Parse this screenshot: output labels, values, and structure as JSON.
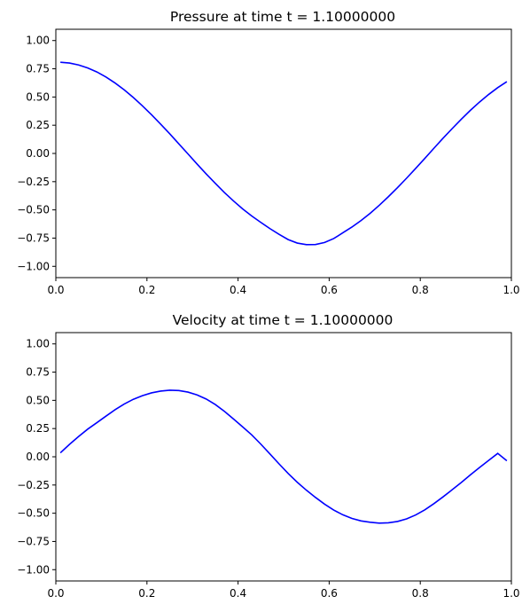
{
  "chart_data": [
    {
      "type": "line",
      "title": "Pressure at time t =      1.10000000",
      "xlabel": "",
      "ylabel": "",
      "xlim": [
        0,
        1
      ],
      "ylim": [
        -1.1,
        1.1
      ],
      "xticks": [
        0.0,
        0.2,
        0.4,
        0.6,
        0.8,
        1.0
      ],
      "xtick_labels": [
        "0.0",
        "0.2",
        "0.4",
        "0.6",
        "0.8",
        "1.0"
      ],
      "yticks": [
        -1.0,
        -0.75,
        -0.5,
        -0.25,
        0.0,
        0.25,
        0.5,
        0.75,
        1.0
      ],
      "ytick_labels": [
        "−1.00",
        "−0.75",
        "−0.50",
        "−0.25",
        "0.00",
        "0.25",
        "0.50",
        "0.75",
        "1.00"
      ],
      "grid": false,
      "series": [
        {
          "color": "#0000ff",
          "x": [
            0.01,
            0.03,
            0.05,
            0.07,
            0.09,
            0.11,
            0.13,
            0.15,
            0.17,
            0.19,
            0.21,
            0.23,
            0.25,
            0.27,
            0.29,
            0.31,
            0.33,
            0.35,
            0.37,
            0.39,
            0.41,
            0.43,
            0.45,
            0.47,
            0.49,
            0.51,
            0.53,
            0.55,
            0.57,
            0.59,
            0.61,
            0.63,
            0.65,
            0.67,
            0.69,
            0.71,
            0.73,
            0.75,
            0.77,
            0.79,
            0.81,
            0.83,
            0.85,
            0.87,
            0.89,
            0.91,
            0.93,
            0.95,
            0.97,
            0.99
          ],
          "values": [
            0.808,
            0.801,
            0.784,
            0.757,
            0.722,
            0.677,
            0.624,
            0.564,
            0.496,
            0.422,
            0.343,
            0.26,
            0.174,
            0.085,
            -0.004,
            -0.094,
            -0.181,
            -0.265,
            -0.346,
            -0.421,
            -0.491,
            -0.554,
            -0.611,
            -0.666,
            -0.716,
            -0.763,
            -0.794,
            -0.808,
            -0.807,
            -0.789,
            -0.754,
            -0.703,
            -0.652,
            -0.594,
            -0.53,
            -0.459,
            -0.383,
            -0.303,
            -0.219,
            -0.132,
            -0.044,
            0.046,
            0.135,
            0.22,
            0.303,
            0.382,
            0.455,
            0.522,
            0.583,
            0.636
          ]
        }
      ]
    },
    {
      "type": "line",
      "title": "Velocity at time t =      1.10000000",
      "xlabel": "",
      "ylabel": "",
      "xlim": [
        0,
        1
      ],
      "ylim": [
        -1.1,
        1.1
      ],
      "xticks": [
        0.0,
        0.2,
        0.4,
        0.6,
        0.8,
        1.0
      ],
      "xtick_labels": [
        "0.0",
        "0.2",
        "0.4",
        "0.6",
        "0.8",
        "1.0"
      ],
      "yticks": [
        -1.0,
        -0.75,
        -0.5,
        -0.25,
        0.0,
        0.25,
        0.5,
        0.75,
        1.0
      ],
      "ytick_labels": [
        "−1.00",
        "−0.75",
        "−0.50",
        "−0.25",
        "0.00",
        "0.25",
        "0.50",
        "0.75",
        "1.00"
      ],
      "grid": false,
      "series": [
        {
          "color": "#0000ff",
          "x": [
            0.01,
            0.03,
            0.05,
            0.07,
            0.09,
            0.11,
            0.13,
            0.15,
            0.17,
            0.19,
            0.21,
            0.23,
            0.25,
            0.27,
            0.29,
            0.31,
            0.33,
            0.35,
            0.37,
            0.39,
            0.41,
            0.43,
            0.45,
            0.47,
            0.49,
            0.51,
            0.53,
            0.55,
            0.57,
            0.59,
            0.61,
            0.63,
            0.65,
            0.67,
            0.69,
            0.71,
            0.73,
            0.75,
            0.77,
            0.79,
            0.81,
            0.83,
            0.85,
            0.87,
            0.89,
            0.91,
            0.93,
            0.95,
            0.97,
            0.99
          ],
          "values": [
            0.035,
            0.11,
            0.18,
            0.245,
            0.302,
            0.36,
            0.417,
            0.467,
            0.509,
            0.541,
            0.566,
            0.582,
            0.59,
            0.587,
            0.573,
            0.548,
            0.512,
            0.463,
            0.403,
            0.335,
            0.265,
            0.194,
            0.112,
            0.025,
            -0.063,
            -0.148,
            -0.226,
            -0.296,
            -0.36,
            -0.42,
            -0.472,
            -0.514,
            -0.546,
            -0.568,
            -0.58,
            -0.588,
            -0.585,
            -0.573,
            -0.55,
            -0.515,
            -0.47,
            -0.415,
            -0.355,
            -0.292,
            -0.228,
            -0.16,
            -0.095,
            -0.032,
            0.03,
            -0.035
          ]
        }
      ]
    }
  ]
}
